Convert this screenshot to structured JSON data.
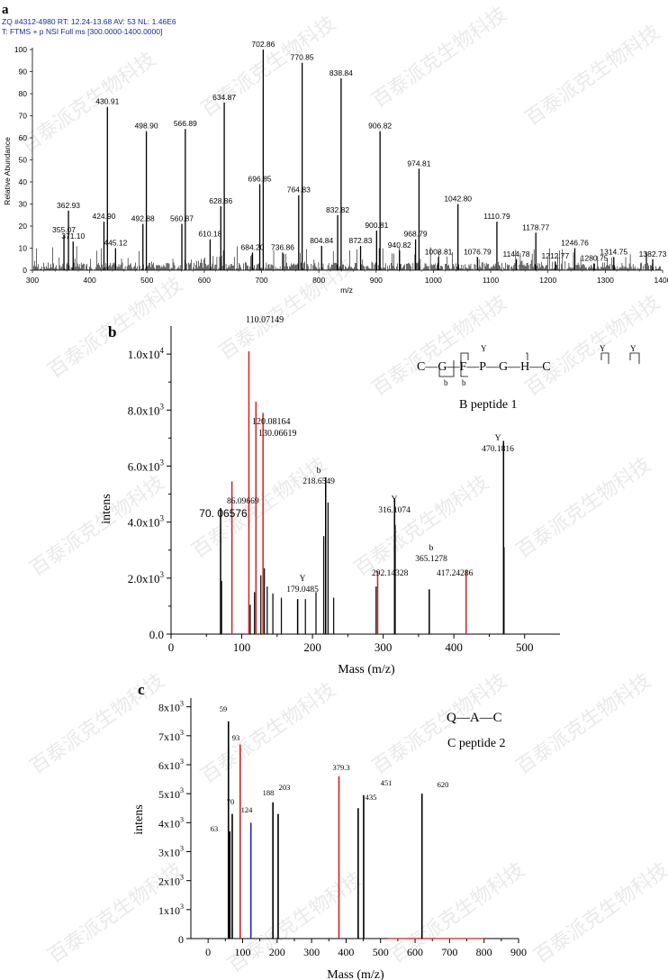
{
  "watermark": {
    "text": "百泰派克生物科技"
  },
  "chart_data": [
    {
      "panel": "a",
      "type": "spectrum",
      "header": [
        "ZQ #4312-4980   RT: 12.24-13.68   AV: 53   NL: 1.46E6",
        "T: FTMS + p NSI Full ms [300.0000-1400.0000]"
      ],
      "xlabel": "m/z",
      "ylabel": "Relative Abundance",
      "xlim": [
        300,
        1400
      ],
      "ylim": [
        0,
        100
      ],
      "xticks": [
        300,
        400,
        500,
        600,
        700,
        800,
        900,
        1000,
        1100,
        1200,
        1300,
        1400
      ],
      "yticks": [
        0,
        10,
        20,
        30,
        40,
        50,
        60,
        70,
        80,
        90,
        100
      ],
      "peaks": [
        {
          "x": 355.07,
          "y": 16,
          "label": "355.07"
        },
        {
          "x": 362.93,
          "y": 27,
          "label": "362.93"
        },
        {
          "x": 371.1,
          "y": 13,
          "label": "371.10"
        },
        {
          "x": 424.9,
          "y": 22,
          "label": "424.90"
        },
        {
          "x": 430.91,
          "y": 74,
          "label": "430.91"
        },
        {
          "x": 445.12,
          "y": 10,
          "label": "445.12"
        },
        {
          "x": 492.88,
          "y": 21,
          "label": "492.88"
        },
        {
          "x": 498.9,
          "y": 63,
          "label": "498.90"
        },
        {
          "x": 560.87,
          "y": 21,
          "label": "560.87"
        },
        {
          "x": 566.89,
          "y": 64,
          "label": "566.89"
        },
        {
          "x": 610.18,
          "y": 14,
          "label": "610.18"
        },
        {
          "x": 628.86,
          "y": 29,
          "label": "628.86"
        },
        {
          "x": 634.87,
          "y": 76,
          "label": "634.87"
        },
        {
          "x": 684.2,
          "y": 8,
          "label": "684.20"
        },
        {
          "x": 696.85,
          "y": 39,
          "label": "696.85"
        },
        {
          "x": 702.86,
          "y": 100,
          "label": "702.86"
        },
        {
          "x": 736.86,
          "y": 8,
          "label": "736.86"
        },
        {
          "x": 764.83,
          "y": 34,
          "label": "764.83"
        },
        {
          "x": 770.85,
          "y": 94,
          "label": "770.85"
        },
        {
          "x": 804.84,
          "y": 11,
          "label": "804.84"
        },
        {
          "x": 832.82,
          "y": 25,
          "label": "832.82"
        },
        {
          "x": 838.84,
          "y": 87,
          "label": "838.84"
        },
        {
          "x": 872.83,
          "y": 11,
          "label": "872.83"
        },
        {
          "x": 900.81,
          "y": 18,
          "label": "900.81"
        },
        {
          "x": 906.82,
          "y": 63,
          "label": "906.82"
        },
        {
          "x": 940.82,
          "y": 9,
          "label": "940.82"
        },
        {
          "x": 968.79,
          "y": 14,
          "label": "968.79"
        },
        {
          "x": 974.81,
          "y": 46,
          "label": "974.81"
        },
        {
          "x": 1008.81,
          "y": 6,
          "label": "1008.81"
        },
        {
          "x": 1042.8,
          "y": 30,
          "label": "1042.80"
        },
        {
          "x": 1076.79,
          "y": 6,
          "label": "1076.79"
        },
        {
          "x": 1110.79,
          "y": 22,
          "label": "1110.79"
        },
        {
          "x": 1144.78,
          "y": 5,
          "label": "1144.78"
        },
        {
          "x": 1178.77,
          "y": 17,
          "label": "1178.77"
        },
        {
          "x": 1212.77,
          "y": 4,
          "label": "1212.77"
        },
        {
          "x": 1246.76,
          "y": 10,
          "label": "1246.76"
        },
        {
          "x": 1280.75,
          "y": 3,
          "label": "1280.75"
        },
        {
          "x": 1314.75,
          "y": 6,
          "label": "1314.75"
        },
        {
          "x": 1382.73,
          "y": 5,
          "label": "1382.73"
        }
      ]
    },
    {
      "panel": "b",
      "type": "spectrum",
      "xlabel": "Mass (m/z)",
      "ylabel": "intens",
      "xlim": [
        0,
        550
      ],
      "ylim": [
        0,
        11000
      ],
      "xticks": [
        0,
        100,
        200,
        300,
        400,
        500
      ],
      "yticks": [
        {
          "value": 0,
          "label": "0.0"
        },
        {
          "value": 2000,
          "base": "2.0x10",
          "exp": "3"
        },
        {
          "value": 4000,
          "base": "4.0x10",
          "exp": "3"
        },
        {
          "value": 6000,
          "base": "6.0x10",
          "exp": "3"
        },
        {
          "value": 8000,
          "base": "8.0x10",
          "exp": "3"
        },
        {
          "value": 10000,
          "base": "1.0x10",
          "exp": "4"
        }
      ],
      "colors": {
        "black": "#000000",
        "red": "#d42020"
      },
      "peptide": {
        "sequence": "C—G—F—P—G—H—C",
        "name": "B peptide 1"
      },
      "peaks": [
        {
          "x": 70.06576,
          "y": 4500,
          "color": "black",
          "label": "70. 06576"
        },
        {
          "x": 86.09669,
          "y": 5450,
          "color": "red",
          "label": "86.09669"
        },
        {
          "x": 110.07149,
          "y": 10100,
          "color": "red",
          "label": "110.07149"
        },
        {
          "x": 120.08164,
          "y": 8300,
          "color": "red",
          "label": "120.08164"
        },
        {
          "x": 130.06619,
          "y": 7900,
          "color": "red",
          "label": "130.06619"
        },
        {
          "x": 179.0485,
          "y": 1250,
          "color": "black",
          "ion": "Y",
          "label": "179.0485"
        },
        {
          "x": 218.6549,
          "y": 5600,
          "color": "black",
          "ion": "b",
          "label": "218.6549"
        },
        {
          "x": 292.14328,
          "y": 2250,
          "color": "red",
          "label": "292.14328"
        },
        {
          "x": 316.1074,
          "y": 4850,
          "color": "black",
          "ion": "Y",
          "label": "316.1074"
        },
        {
          "x": 365.1278,
          "y": 1600,
          "color": "black",
          "ion": "b",
          "label": "365.1278"
        },
        {
          "x": 417.24286,
          "y": 2300,
          "color": "red",
          "label": "417.24286"
        },
        {
          "x": 470.1816,
          "y": 6900,
          "color": "black",
          "ion": "Y",
          "label": "470.1816"
        }
      ],
      "minor_peaks": [
        {
          "x": 71.5,
          "y": 1900
        },
        {
          "x": 112,
          "y": 1050
        },
        {
          "x": 118,
          "y": 1500
        },
        {
          "x": 127,
          "y": 2100
        },
        {
          "x": 132,
          "y": 2350
        },
        {
          "x": 136,
          "y": 1700
        },
        {
          "x": 144,
          "y": 1450
        },
        {
          "x": 156,
          "y": 1300
        },
        {
          "x": 190,
          "y": 1250
        },
        {
          "x": 205,
          "y": 1500
        },
        {
          "x": 216,
          "y": 3500
        },
        {
          "x": 222,
          "y": 4700
        },
        {
          "x": 230,
          "y": 1300
        },
        {
          "x": 290,
          "y": 1700
        },
        {
          "x": 317,
          "y": 3900
        },
        {
          "x": 470.9,
          "y": 3100
        }
      ]
    },
    {
      "panel": "c",
      "type": "spectrum",
      "xlabel": "Mass (m/z)",
      "ylabel": "intens",
      "xlim": [
        -50,
        900
      ],
      "ylim": [
        0,
        8300
      ],
      "xticks": [
        0,
        100,
        200,
        300,
        400,
        500,
        600,
        700,
        800,
        900
      ],
      "yticks": [
        {
          "value": 0,
          "label": "0"
        },
        {
          "value": 1000,
          "base": "1x10",
          "exp": "3"
        },
        {
          "value": 2000,
          "base": "2x10",
          "exp": "3"
        },
        {
          "value": 3000,
          "base": "3x10",
          "exp": "3"
        },
        {
          "value": 4000,
          "base": "4x10",
          "exp": "3"
        },
        {
          "value": 5000,
          "base": "5x10",
          "exp": "3"
        },
        {
          "value": 6000,
          "base": "6x10",
          "exp": "3"
        },
        {
          "value": 7000,
          "base": "7x10",
          "exp": "3"
        },
        {
          "value": 8000,
          "base": "8x10",
          "exp": "3"
        }
      ],
      "colors": {
        "black": "#000000",
        "red": "#d42020",
        "blue": "#2020c0"
      },
      "peptide": {
        "sequence": "Q—A—C",
        "name": "C peptide 2"
      },
      "peaks": [
        {
          "x": 59,
          "y": 7500,
          "color": "black",
          "label": "59"
        },
        {
          "x": 63,
          "y": 3700,
          "color": "black",
          "label": "63"
        },
        {
          "x": 70,
          "y": 4300,
          "color": "black",
          "label": "70"
        },
        {
          "x": 93,
          "y": 6700,
          "color": "red",
          "label": "93"
        },
        {
          "x": 124,
          "y": 4000,
          "color": "blue",
          "label": "124"
        },
        {
          "x": 188,
          "y": 4700,
          "color": "black",
          "label": "188"
        },
        {
          "x": 203,
          "y": 4300,
          "color": "black",
          "label": "203"
        },
        {
          "x": 379.3,
          "y": 5600,
          "color": "red",
          "label": "379.3"
        },
        {
          "x": 435,
          "y": 4500,
          "color": "black",
          "label": "435"
        },
        {
          "x": 451,
          "y": 4950,
          "color": "black",
          "label": "451"
        },
        {
          "x": 620,
          "y": 5000,
          "color": "black",
          "label": "620"
        }
      ]
    }
  ]
}
